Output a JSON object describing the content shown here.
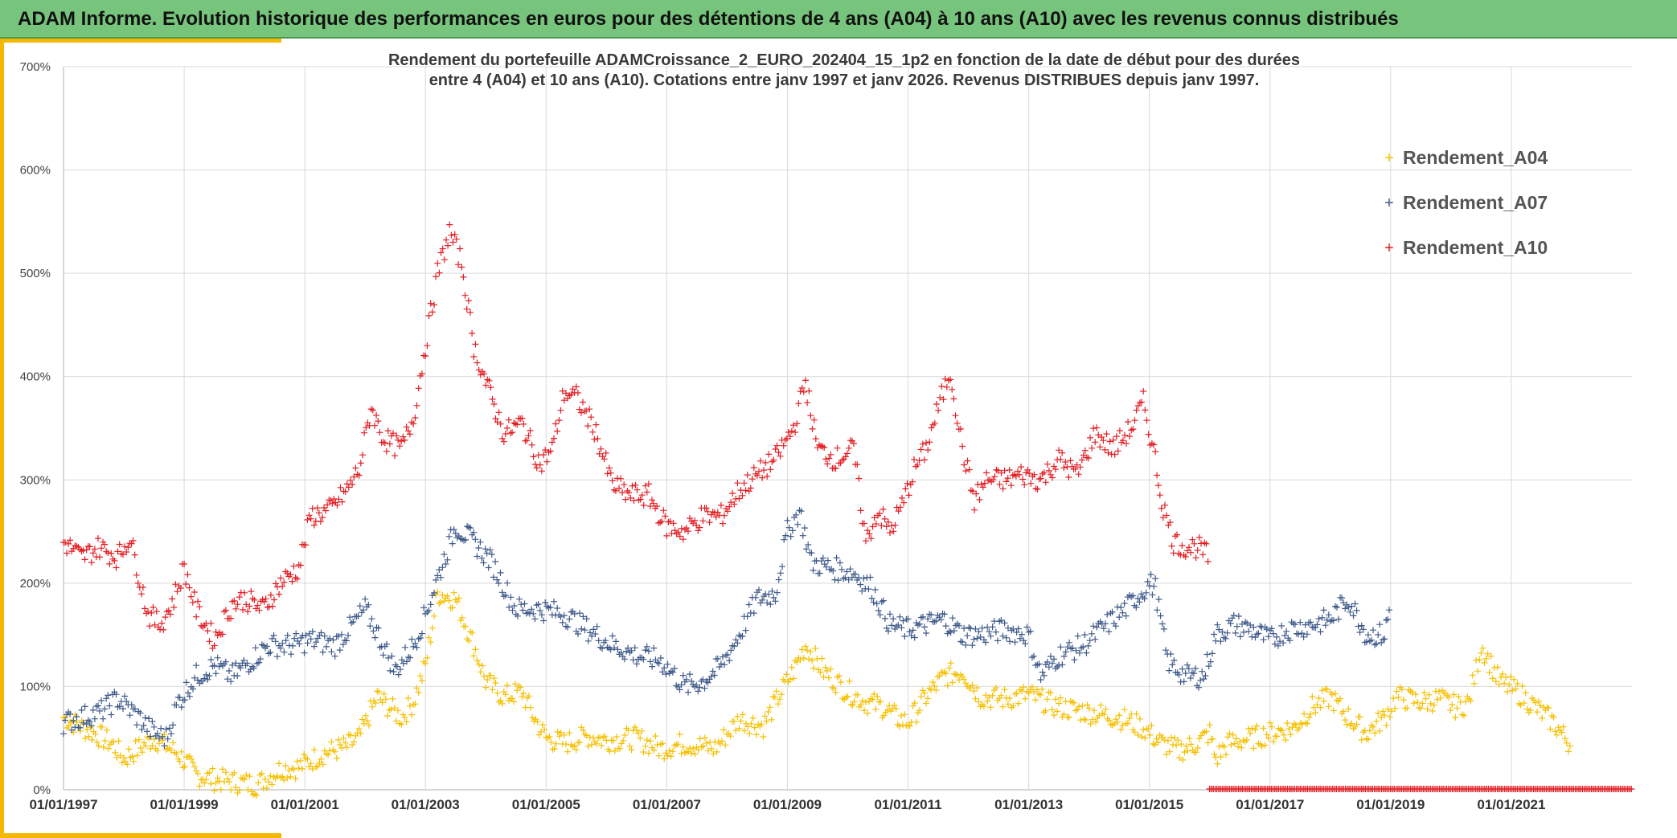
{
  "header": {
    "title": "ADAM Informe. Evolution historique des performances en euros pour des détentions de 4 ans (A04) à 10 ans (A10) avec les revenus connus distribués"
  },
  "colors": {
    "header_bg": "#77c47c",
    "accent": "#f5b800",
    "A04": "#f5c000",
    "A07": "#3f5a8a",
    "A10": "#e31e24"
  },
  "chart_data": {
    "type": "scatter",
    "title_lines": [
      "Rendement du portefeuille ADAMCroissance_2_EURO_202404_15_1p2  en fonction de la date de début pour des durées",
      "entre 4 (A04) et 10 ans (A10). Cotations entre janv 1997 et janv 2026. Revenus DISTRIBUES depuis janv 1997."
    ],
    "xlabel": "",
    "ylabel": "",
    "x_range": [
      1997.0,
      2023.0
    ],
    "ylim": [
      0,
      700
    ],
    "y_ticks": [
      0,
      100,
      200,
      300,
      400,
      500,
      600,
      700
    ],
    "y_tick_labels": [
      "0%",
      "100%",
      "200%",
      "300%",
      "400%",
      "500%",
      "600%",
      "700%"
    ],
    "x_ticks": [
      1997,
      1999,
      2001,
      2003,
      2005,
      2007,
      2009,
      2011,
      2013,
      2015,
      2017,
      2019,
      2021
    ],
    "x_tick_labels": [
      "01/01/1997",
      "01/01/1999",
      "01/01/2001",
      "01/01/2003",
      "01/01/2005",
      "01/01/2007",
      "01/01/2009",
      "01/01/2011",
      "01/01/2013",
      "01/01/2015",
      "01/01/2017",
      "01/01/2019",
      "01/01/2021"
    ],
    "grid": true,
    "legend_position": "top-right",
    "marker": "+",
    "series": [
      {
        "name": "Rendement_A04",
        "key": "A04",
        "x": [
          1997.0,
          1997.5,
          1997.8,
          1998.0,
          1998.5,
          1998.9,
          1999.2,
          1999.5,
          1999.8,
          2000.2,
          2000.6,
          2000.9,
          2001.3,
          2001.7,
          2001.9,
          2002.2,
          2002.4,
          2002.6,
          2002.8,
          2003.0,
          2003.2,
          2003.5,
          2003.8,
          2004.0,
          2004.3,
          2004.6,
          2004.8,
          2005.0,
          2005.3,
          2005.7,
          2006.0,
          2006.5,
          2006.9,
          2007.3,
          2007.8,
          2008.2,
          2008.6,
          2008.9,
          2009.1,
          2009.3,
          2009.6,
          2010.0,
          2010.3,
          2010.6,
          2010.8,
          2011.0,
          2011.3,
          2011.6,
          2011.9,
          2012.2,
          2012.6,
          2013.0,
          2013.5,
          2014.0,
          2014.5,
          2014.9,
          2015.2,
          2015.5,
          2015.8,
          2016.0,
          2016.1,
          2016.3,
          2016.7,
          2017.0,
          2017.4,
          2017.7,
          2018.0,
          2018.3,
          2018.6,
          2018.9,
          2019.1,
          2019.5,
          2019.8,
          2020.1,
          2020.3,
          2020.5,
          2020.8,
          2021.1,
          2021.4,
          2021.7,
          2022.0
        ],
        "y": [
          70,
          55,
          45,
          30,
          50,
          35,
          15,
          10,
          8,
          5,
          20,
          22,
          35,
          42,
          50,
          90,
          80,
          70,
          85,
          120,
          190,
          185,
          140,
          105,
          90,
          95,
          70,
          50,
          45,
          52,
          48,
          50,
          40,
          45,
          40,
          68,
          62,
          95,
          115,
          140,
          115,
          95,
          85,
          80,
          70,
          65,
          90,
          110,
          115,
          90,
          88,
          92,
          80,
          75,
          70,
          60,
          45,
          38,
          45,
          55,
          30,
          45,
          50,
          55,
          60,
          80,
          90,
          70,
          55,
          70,
          90,
          85,
          88,
          80,
          85,
          140,
          105,
          95,
          80,
          65,
          42
        ]
      },
      {
        "name": "Rendement_A07",
        "key": "A07",
        "x": [
          1997.0,
          1997.3,
          1997.6,
          1997.9,
          1998.1,
          1998.5,
          1998.7,
          1998.9,
          1999.2,
          1999.5,
          1999.8,
          2000.1,
          2000.4,
          2000.8,
          2001.1,
          2001.5,
          2001.8,
          2002.0,
          2002.3,
          2002.5,
          2002.8,
          2003.0,
          2003.2,
          2003.5,
          2003.8,
          2004.1,
          2004.5,
          2004.9,
          2005.3,
          2005.7,
          2006.1,
          2006.5,
          2006.9,
          2007.3,
          2007.6,
          2007.9,
          2008.2,
          2008.5,
          2008.8,
          2009.0,
          2009.2,
          2009.4,
          2009.7,
          2010.1,
          2010.4,
          2010.7,
          2011.0,
          2011.3,
          2011.6,
          2011.9,
          2012.2,
          2012.6,
          2013.0,
          2013.2,
          2013.5,
          2013.9,
          2014.3,
          2014.7,
          2015.0,
          2015.1,
          2015.3,
          2015.6,
          2015.9,
          2016.1,
          2016.4,
          2016.7,
          2017.0,
          2017.3,
          2017.7,
          2018.0,
          2018.3,
          2018.6,
          2018.9,
          2019.0
        ],
        "y": [
          65,
          70,
          75,
          88,
          78,
          55,
          50,
          85,
          110,
          120,
          110,
          125,
          140,
          140,
          145,
          140,
          160,
          175,
          140,
          115,
          140,
          170,
          205,
          255,
          240,
          220,
          175,
          175,
          170,
          155,
          140,
          130,
          125,
          100,
          105,
          120,
          150,
          185,
          190,
          250,
          270,
          220,
          215,
          210,
          195,
          160,
          155,
          160,
          165,
          150,
          150,
          155,
          150,
          110,
          130,
          140,
          160,
          180,
          200,
          195,
          125,
          110,
          110,
          150,
          160,
          155,
          145,
          155,
          160,
          165,
          185,
          150,
          150,
          180
        ]
      },
      {
        "name": "Rendement_A10",
        "key": "A10",
        "x": [
          1997.0,
          1997.3,
          1997.6,
          1997.9,
          1998.1,
          1998.4,
          1998.6,
          1998.8,
          1999.0,
          1999.2,
          1999.5,
          1999.8,
          2000.0,
          2000.3,
          2000.6,
          2000.9,
          2001.1,
          2001.4,
          2001.7,
          2001.9,
          2002.1,
          2002.3,
          2002.6,
          2002.8,
          2003.0,
          2003.2,
          2003.4,
          2003.6,
          2003.8,
          2004.0,
          2004.3,
          2004.6,
          2004.9,
          2005.1,
          2005.3,
          2005.5,
          2005.8,
          2006.1,
          2006.4,
          2006.7,
          2007.0,
          2007.3,
          2007.6,
          2007.9,
          2008.2,
          2008.5,
          2008.8,
          2009.1,
          2009.3,
          2009.5,
          2009.8,
          2010.1,
          2010.3,
          2010.5,
          2010.7,
          2010.9,
          2011.1,
          2011.3,
          2011.5,
          2011.7,
          2011.9,
          2012.1,
          2012.3,
          2012.6,
          2012.9,
          2013.2,
          2013.5,
          2013.8,
          2014.1,
          2014.4,
          2014.7,
          2014.9,
          2015.1,
          2015.2,
          2015.4,
          2015.6,
          2015.8,
          2016.0
        ],
        "y": [
          240,
          225,
          235,
          225,
          245,
          170,
          160,
          180,
          215,
          175,
          145,
          180,
          185,
          175,
          200,
          215,
          265,
          270,
          290,
          310,
          370,
          340,
          330,
          360,
          430,
          500,
          540,
          510,
          430,
          395,
          345,
          355,
          315,
          330,
          385,
          380,
          350,
          295,
          285,
          285,
          255,
          250,
          265,
          265,
          290,
          305,
          320,
          350,
          395,
          330,
          320,
          330,
          240,
          270,
          250,
          275,
          310,
          330,
          370,
          405,
          330,
          280,
          300,
          300,
          305,
          300,
          320,
          305,
          345,
          330,
          350,
          375,
          320,
          280,
          240,
          235,
          235,
          225
        ]
      }
    ],
    "baseline_band": {
      "series": "A10",
      "x_start": 2016.0,
      "x_end": 2023.0,
      "y": 0
    }
  }
}
